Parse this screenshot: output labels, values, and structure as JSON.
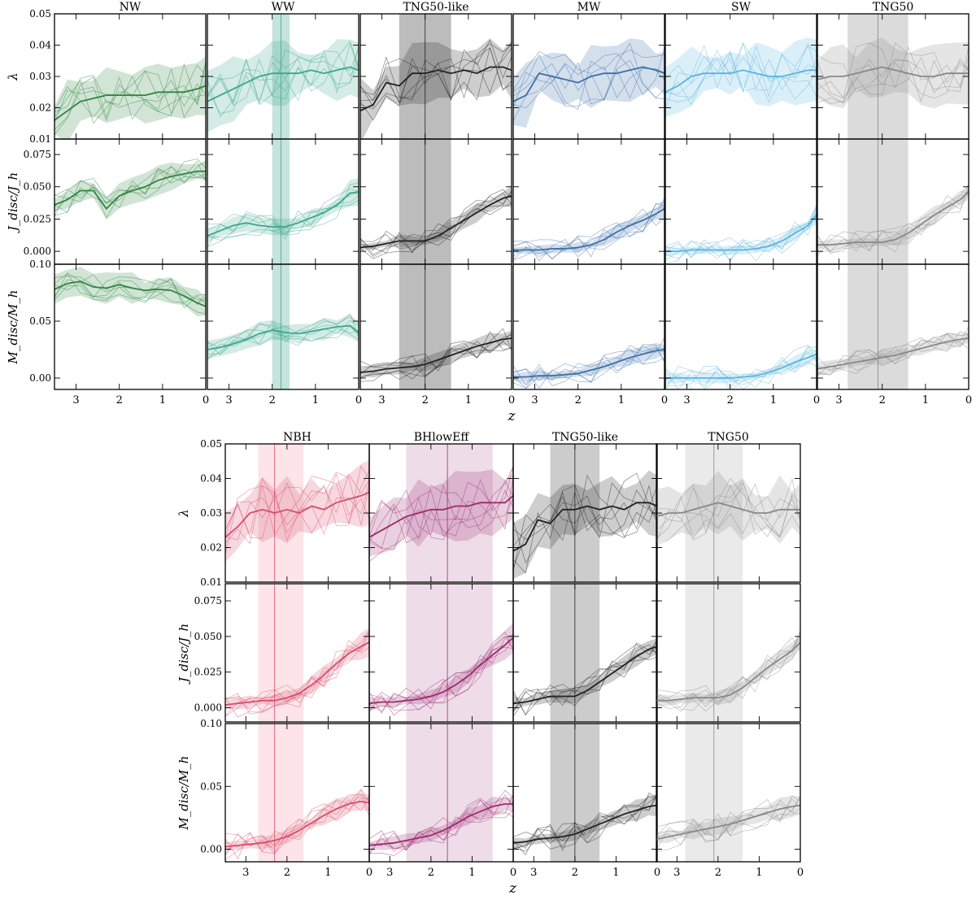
{
  "chart_data": [
    {
      "type": "line",
      "figure": "top",
      "columns": [
        "NW",
        "WW",
        "TNG50-like",
        "MW",
        "SW",
        "TNG50"
      ],
      "colors": [
        "#2e8540",
        "#3aa68c",
        "#222222",
        "#3d6fa8",
        "#5ab4de",
        "#888888"
      ],
      "band_colors": [
        "#2e8540",
        "#3aa68c",
        "#222222",
        "#3d6fa8",
        "#5ab4de",
        "#888888"
      ],
      "xlabel": "z",
      "xlim": [
        3.5,
        0
      ],
      "xticks": [
        "3",
        "2",
        "1",
        "0"
      ],
      "rows": [
        {
          "ylabel": "λ",
          "ylim": [
            0.01,
            0.05
          ],
          "yticks": [
            "0.01",
            "0.02",
            "0.03",
            "0.04",
            "0.05"
          ]
        },
        {
          "ylabel": "J_disc/J_h",
          "ylim": [
            -0.01,
            0.087
          ],
          "yticks": [
            "0.000",
            "0.025",
            "0.050",
            "0.075"
          ]
        },
        {
          "ylabel": "M_disc/M_h",
          "ylim": [
            -0.01,
            0.1
          ],
          "yticks": [
            "0.00",
            "0.05",
            "0.10"
          ]
        }
      ],
      "z_grid": [
        3.5,
        3.2,
        2.9,
        2.6,
        2.3,
        2.0,
        1.7,
        1.4,
        1.1,
        0.8,
        0.5,
        0.2,
        0.0
      ],
      "median": {
        "NW": [
          [
            0.016,
            0.019,
            0.022,
            0.023,
            0.024,
            0.024,
            0.024,
            0.024,
            0.025,
            0.025,
            0.025,
            0.026,
            0.027
          ],
          [
            0.036,
            0.04,
            0.047,
            0.047,
            0.033,
            0.043,
            0.047,
            0.05,
            0.055,
            0.058,
            0.06,
            0.062,
            0.062
          ],
          [
            0.078,
            0.083,
            0.085,
            0.08,
            0.079,
            0.082,
            0.079,
            0.077,
            0.078,
            0.077,
            0.072,
            0.066,
            0.063
          ]
        ],
        "WW": [
          [
            0.022,
            0.024,
            0.026,
            0.028,
            0.03,
            0.031,
            0.031,
            0.031,
            0.032,
            0.031,
            0.032,
            0.033,
            0.032
          ],
          [
            0.012,
            0.016,
            0.02,
            0.022,
            0.02,
            0.019,
            0.019,
            0.022,
            0.026,
            0.03,
            0.036,
            0.045,
            0.046
          ],
          [
            0.025,
            0.027,
            0.03,
            0.034,
            0.039,
            0.042,
            0.04,
            0.039,
            0.041,
            0.043,
            0.045,
            0.046,
            0.04
          ]
        ],
        "TNG50-like": [
          [
            0.019,
            0.021,
            0.028,
            0.027,
            0.031,
            0.031,
            0.032,
            0.031,
            0.032,
            0.031,
            0.033,
            0.033,
            0.032
          ],
          [
            0.003,
            0.004,
            0.006,
            0.008,
            0.008,
            0.008,
            0.012,
            0.018,
            0.024,
            0.03,
            0.036,
            0.041,
            0.043
          ],
          [
            0.005,
            0.006,
            0.008,
            0.009,
            0.01,
            0.012,
            0.016,
            0.02,
            0.024,
            0.028,
            0.031,
            0.034,
            0.035
          ]
        ],
        "MW": [
          [
            0.022,
            0.024,
            0.031,
            0.03,
            0.029,
            0.028,
            0.03,
            0.031,
            0.031,
            0.032,
            0.033,
            0.032,
            0.031
          ],
          [
            0.001,
            0.001,
            0.001,
            0.002,
            0.002,
            0.003,
            0.005,
            0.009,
            0.015,
            0.02,
            0.024,
            0.029,
            0.033
          ],
          [
            0.001,
            0.001,
            0.002,
            0.002,
            0.003,
            0.004,
            0.007,
            0.01,
            0.014,
            0.018,
            0.021,
            0.024,
            0.025
          ]
        ],
        "SW": [
          [
            0.025,
            0.027,
            0.03,
            0.031,
            0.031,
            0.031,
            0.032,
            0.031,
            0.03,
            0.03,
            0.031,
            0.032,
            0.032
          ],
          [
            0.0,
            0.0,
            0.001,
            0.001,
            0.001,
            0.001,
            0.001,
            0.002,
            0.004,
            0.008,
            0.014,
            0.02,
            0.028
          ],
          [
            0.0,
            0.0,
            0.0,
            0.0,
            0.0,
            0.0,
            0.001,
            0.002,
            0.005,
            0.009,
            0.014,
            0.018,
            0.021
          ]
        ],
        "TNG50": [
          [
            0.029,
            0.03,
            0.03,
            0.031,
            0.032,
            0.033,
            0.032,
            0.031,
            0.03,
            0.03,
            0.031,
            0.031,
            0.031
          ],
          [
            0.005,
            0.005,
            0.006,
            0.007,
            0.007,
            0.007,
            0.009,
            0.014,
            0.021,
            0.028,
            0.034,
            0.04,
            0.046
          ],
          [
            0.008,
            0.01,
            0.012,
            0.014,
            0.016,
            0.018,
            0.02,
            0.023,
            0.026,
            0.029,
            0.032,
            0.034,
            0.035
          ]
        ]
      },
      "z_bands": {
        "NW": null,
        "WW": [
          1.6,
          2.0,
          1.8
        ],
        "TNG50-like": [
          1.4,
          2.6,
          2.0
        ],
        "MW": null,
        "SW": null,
        "TNG50": [
          1.4,
          2.8,
          2.1
        ]
      }
    },
    {
      "type": "line",
      "figure": "bottom",
      "columns": [
        "NBH",
        "BHlowEff",
        "TNG50-like",
        "TNG50"
      ],
      "colors": [
        "#d84c6b",
        "#9c2a6e",
        "#222222",
        "#888888"
      ],
      "band_colors": [
        "#f4a4b2",
        "#c88ab5",
        "#555555",
        "#bbbbbb"
      ],
      "xlabel": "z",
      "xlim": [
        3.5,
        0
      ],
      "xticks": [
        "3",
        "2",
        "1",
        "0"
      ],
      "rows": [
        {
          "ylabel": "λ",
          "ylim": [
            0.01,
            0.05
          ],
          "yticks": [
            "0.01",
            "0.02",
            "0.03",
            "0.04",
            "0.05"
          ]
        },
        {
          "ylabel": "J_disc/J_h",
          "ylim": [
            -0.01,
            0.087
          ],
          "yticks": [
            "0.000",
            "0.025",
            "0.050",
            "0.075"
          ]
        },
        {
          "ylabel": "M_disc/M_h",
          "ylim": [
            -0.01,
            0.1
          ],
          "yticks": [
            "0.00",
            "0.05",
            "0.10"
          ]
        }
      ],
      "z_grid": [
        3.5,
        3.2,
        2.9,
        2.6,
        2.3,
        2.0,
        1.7,
        1.4,
        1.1,
        0.8,
        0.5,
        0.2,
        0.0
      ],
      "median": {
        "NBH": [
          [
            0.023,
            0.026,
            0.03,
            0.031,
            0.03,
            0.031,
            0.03,
            0.032,
            0.031,
            0.033,
            0.034,
            0.035,
            0.036
          ],
          [
            0.002,
            0.003,
            0.004,
            0.005,
            0.005,
            0.007,
            0.01,
            0.016,
            0.023,
            0.031,
            0.038,
            0.043,
            0.046
          ],
          [
            0.002,
            0.003,
            0.004,
            0.005,
            0.007,
            0.01,
            0.015,
            0.021,
            0.027,
            0.032,
            0.036,
            0.038,
            0.037
          ]
        ],
        "BHlowEff": [
          [
            0.023,
            0.025,
            0.027,
            0.029,
            0.03,
            0.031,
            0.031,
            0.032,
            0.032,
            0.033,
            0.033,
            0.033,
            0.035
          ],
          [
            0.003,
            0.004,
            0.004,
            0.005,
            0.006,
            0.008,
            0.011,
            0.016,
            0.022,
            0.03,
            0.037,
            0.044,
            0.049
          ],
          [
            0.003,
            0.004,
            0.005,
            0.007,
            0.009,
            0.011,
            0.015,
            0.02,
            0.026,
            0.03,
            0.034,
            0.036,
            0.036
          ]
        ],
        "TNG50-like": [
          [
            0.019,
            0.021,
            0.028,
            0.027,
            0.031,
            0.031,
            0.032,
            0.031,
            0.032,
            0.031,
            0.033,
            0.033,
            0.032
          ],
          [
            0.003,
            0.004,
            0.006,
            0.008,
            0.008,
            0.008,
            0.012,
            0.018,
            0.024,
            0.03,
            0.036,
            0.041,
            0.043
          ],
          [
            0.005,
            0.006,
            0.008,
            0.009,
            0.01,
            0.012,
            0.016,
            0.02,
            0.024,
            0.028,
            0.031,
            0.034,
            0.035
          ]
        ],
        "TNG50": [
          [
            0.029,
            0.03,
            0.03,
            0.031,
            0.032,
            0.033,
            0.032,
            0.031,
            0.03,
            0.03,
            0.031,
            0.031,
            0.031
          ],
          [
            0.005,
            0.005,
            0.006,
            0.007,
            0.007,
            0.007,
            0.009,
            0.014,
            0.021,
            0.028,
            0.034,
            0.04,
            0.046
          ],
          [
            0.008,
            0.01,
            0.012,
            0.014,
            0.016,
            0.018,
            0.02,
            0.023,
            0.026,
            0.029,
            0.032,
            0.034,
            0.035
          ]
        ]
      },
      "z_bands": {
        "NBH": [
          1.6,
          2.7,
          2.3
        ],
        "BHlowEff": [
          0.5,
          2.6,
          1.6
        ],
        "TNG50-like": [
          1.4,
          2.6,
          2.0
        ],
        "TNG50": [
          1.4,
          2.8,
          2.1
        ]
      }
    }
  ]
}
